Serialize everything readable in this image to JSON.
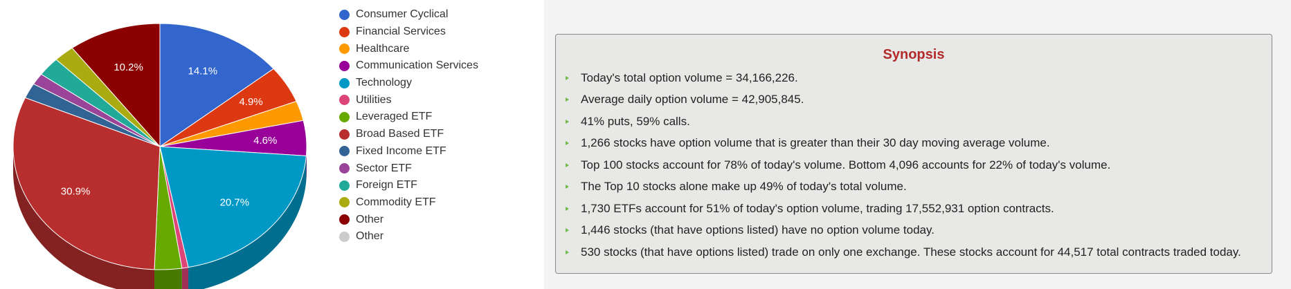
{
  "chart_data": {
    "type": "pie",
    "categories": [
      "Consumer Cyclical",
      "Financial Services",
      "Healthcare",
      "Communication Services",
      "Technology",
      "Utilities",
      "Leveraged ETF",
      "Broad Based ETF",
      "Fixed Income ETF",
      "Sector ETF",
      "Foreign ETF",
      "Commodity ETF",
      "Other",
      "Other"
    ],
    "values": [
      14.1,
      4.9,
      2.6,
      4.6,
      20.7,
      0.7,
      3.0,
      30.9,
      2.0,
      1.5,
      2.5,
      2.3,
      10.2,
      0.0
    ],
    "data_labels": [
      "14.1%",
      "4.9%",
      "",
      "4.6%",
      "20.7%",
      "",
      "",
      "30.9%",
      "",
      "",
      "",
      "",
      "10.2%",
      ""
    ],
    "colors": [
      "#3366cc",
      "#dc3912",
      "#ff9900",
      "#990099",
      "#0099c6",
      "#dd4477",
      "#66aa00",
      "#b82e2e",
      "#316395",
      "#994499",
      "#22aa99",
      "#aaaa11",
      "#8b0000",
      "#cccccc"
    ],
    "legend_position": "right",
    "three_d": true
  },
  "synopsis": {
    "title": "Synopsis",
    "items": [
      "Today's total option volume = 34,166,226.",
      "Average daily option volume = 42,905,845.",
      "41% puts, 59% calls.",
      "1,266 stocks have option volume that is greater than their 30 day moving average volume.",
      "Top 100 stocks account for 78% of today's volume. Bottom 4,096 accounts for 22% of today's volume.",
      "The Top 10 stocks alone make up 49% of today's total volume.",
      "1,730 ETFs account for 51% of today's option volume, trading 17,552,931 option contracts.",
      "1,446 stocks (that have options listed) have no option volume today.",
      "530 stocks (that have options listed) trade on only one exchange. These stocks account for 44,517 total contracts traded today."
    ]
  }
}
